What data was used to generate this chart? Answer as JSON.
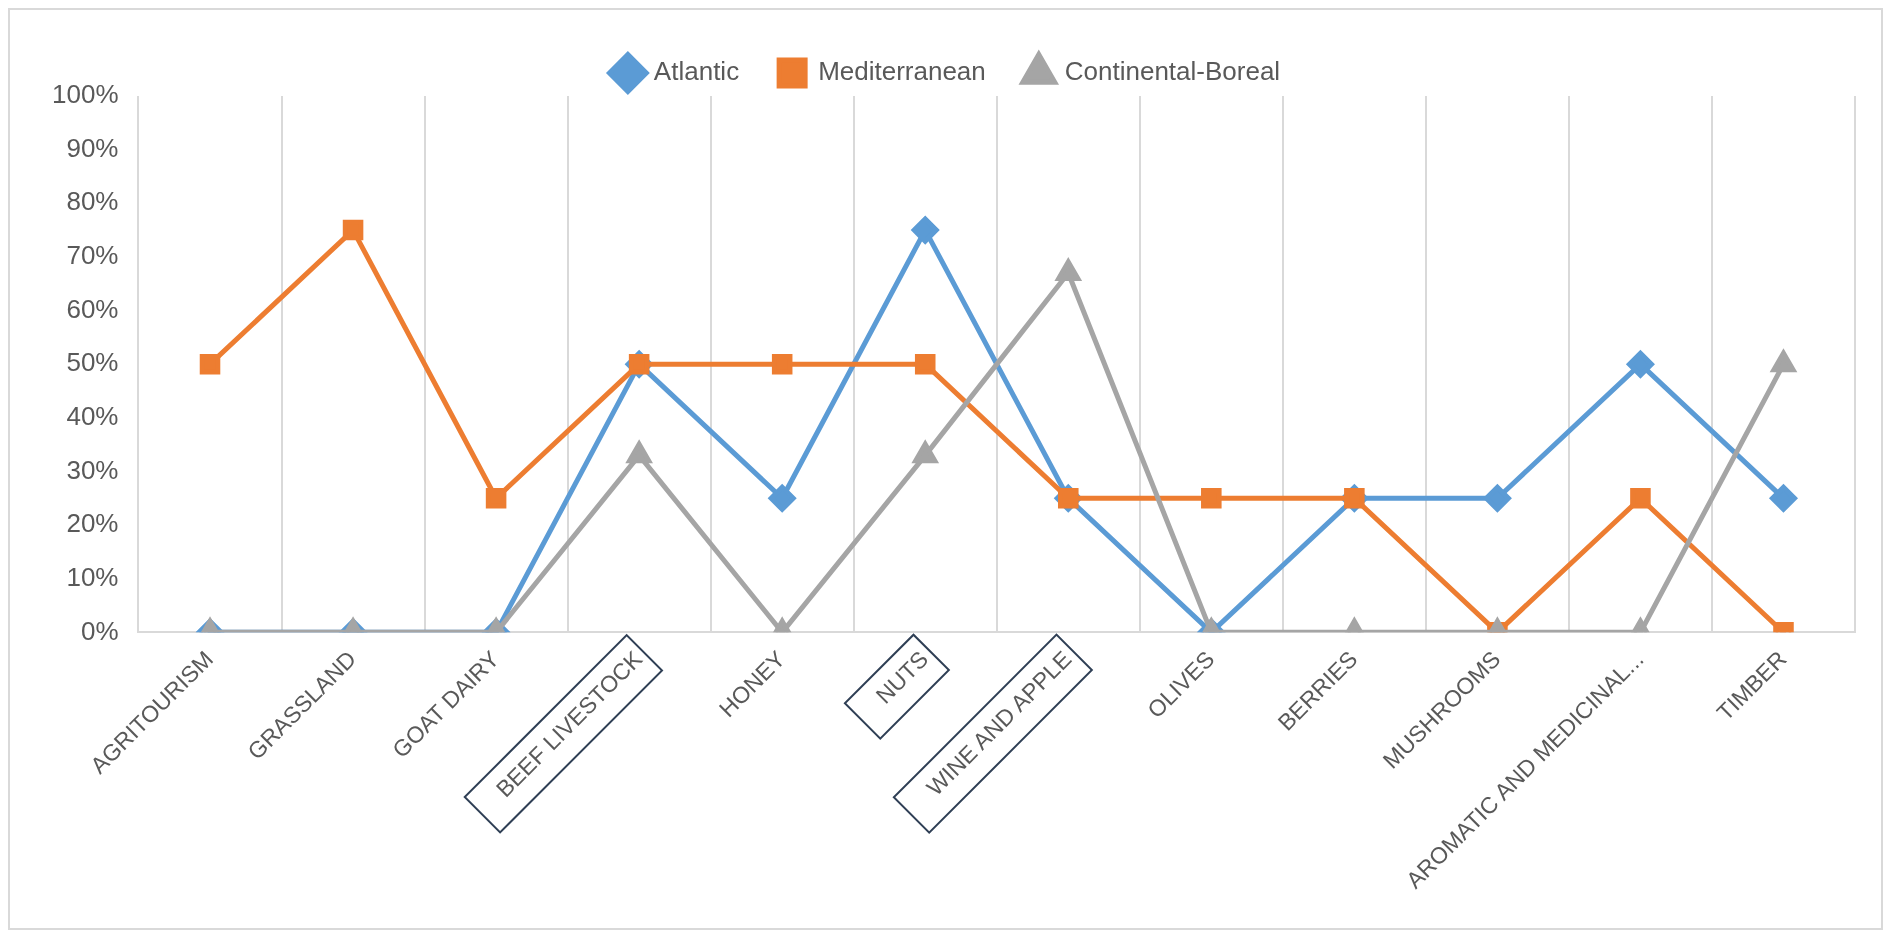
{
  "chart_data": {
    "type": "line",
    "categories": [
      "AGRITOURISM",
      "GRASSLAND",
      "GOAT DAIRY",
      "BEEF LIVESTOCK",
      "HONEY",
      "NUTS",
      "WINE AND APPLE",
      "OLIVES",
      "BERRIES",
      "MUSHROOMS",
      "AROMATIC AND MEDICINAL...",
      "TIMBER"
    ],
    "series": [
      {
        "name": "Atlantic",
        "color": "#5b9bd5",
        "marker": "diamond",
        "values": [
          0,
          0,
          0,
          50,
          25,
          75,
          25,
          0,
          25,
          25,
          50,
          25
        ]
      },
      {
        "name": "Mediterranean",
        "color": "#ed7d31",
        "marker": "square",
        "values": [
          50,
          75,
          25,
          50,
          50,
          50,
          25,
          25,
          25,
          0,
          25,
          0
        ]
      },
      {
        "name": "Continental-Boreal",
        "color": "#a5a5a5",
        "marker": "triangle",
        "values": [
          0,
          0,
          0,
          33,
          0,
          33,
          67,
          0,
          0,
          0,
          0,
          50
        ]
      }
    ],
    "ylim": [
      0,
      100
    ],
    "yticks": [
      {
        "value": 0,
        "label": "0%"
      },
      {
        "value": 10,
        "label": "10%"
      },
      {
        "value": 20,
        "label": "20%"
      },
      {
        "value": 30,
        "label": "30%"
      },
      {
        "value": 40,
        "label": "40%"
      },
      {
        "value": 50,
        "label": "50%"
      },
      {
        "value": 60,
        "label": "60%"
      },
      {
        "value": 70,
        "label": "70%"
      },
      {
        "value": 80,
        "label": "80%"
      },
      {
        "value": 90,
        "label": "90%"
      },
      {
        "value": 100,
        "label": "100%"
      }
    ],
    "grid": "x",
    "legend": "top",
    "line_style": "solid"
  }
}
